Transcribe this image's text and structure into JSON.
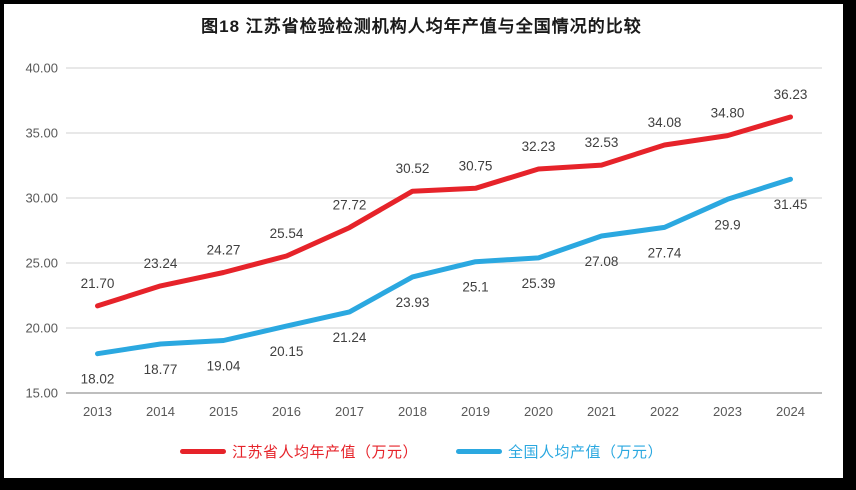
{
  "title": "图18  江苏省检验检测机构人均年产值与全国情况的比较",
  "colors": {
    "jiangsu_red": "#e6232a",
    "national_blue": "#2ba8e0",
    "gridline": "#d9d9d9",
    "axis_line": "#a9a9a9",
    "axis_label": "#595959",
    "data_label": "#404040",
    "frame": "#000000",
    "background": "#ffffff",
    "title_color": "#1a1a1a"
  },
  "chart_data": {
    "type": "line",
    "title": "图18  江苏省检验检测机构人均年产值与全国情况的比较",
    "categories": [
      "2013",
      "2014",
      "2015",
      "2016",
      "2017",
      "2018",
      "2019",
      "2020",
      "2021",
      "2022",
      "2023",
      "2024"
    ],
    "series": [
      {
        "name": "江苏省人均年产值（万元）",
        "color_key": "jiangsu_red",
        "values": [
          21.7,
          23.24,
          24.27,
          25.54,
          27.72,
          30.52,
          30.75,
          32.23,
          32.53,
          34.08,
          34.8,
          36.23
        ],
        "labels": [
          "21.70",
          "23.24",
          "24.27",
          "25.54",
          "27.72",
          "30.52",
          "30.75",
          "32.23",
          "32.53",
          "34.08",
          "34.80",
          "36.23"
        ],
        "label_position": "above"
      },
      {
        "name": "全国人均产值（万元）",
        "color_key": "national_blue",
        "values": [
          18.02,
          18.77,
          19.04,
          20.15,
          21.24,
          23.93,
          25.1,
          25.39,
          27.08,
          27.74,
          29.9,
          31.45
        ],
        "labels": [
          "18.02",
          "18.77",
          "19.04",
          "20.15",
          "21.24",
          "23.93",
          "25.1",
          "25.39",
          "27.08",
          "27.74",
          "29.9",
          "31.45"
        ],
        "label_position": "below"
      }
    ],
    "xlabel": "",
    "ylabel": "",
    "ylim": [
      15,
      40
    ],
    "ytick_step": 5,
    "yticks": [
      "40.00",
      "35.00",
      "30.00",
      "25.00",
      "20.00",
      "15.00"
    ],
    "grid": true,
    "legend_position": "bottom"
  },
  "legend": {
    "items": [
      {
        "label": "江苏省人均年产值（万元）",
        "color_key": "jiangsu_red"
      },
      {
        "label": "全国人均产值（万元）",
        "color_key": "national_blue"
      }
    ]
  }
}
